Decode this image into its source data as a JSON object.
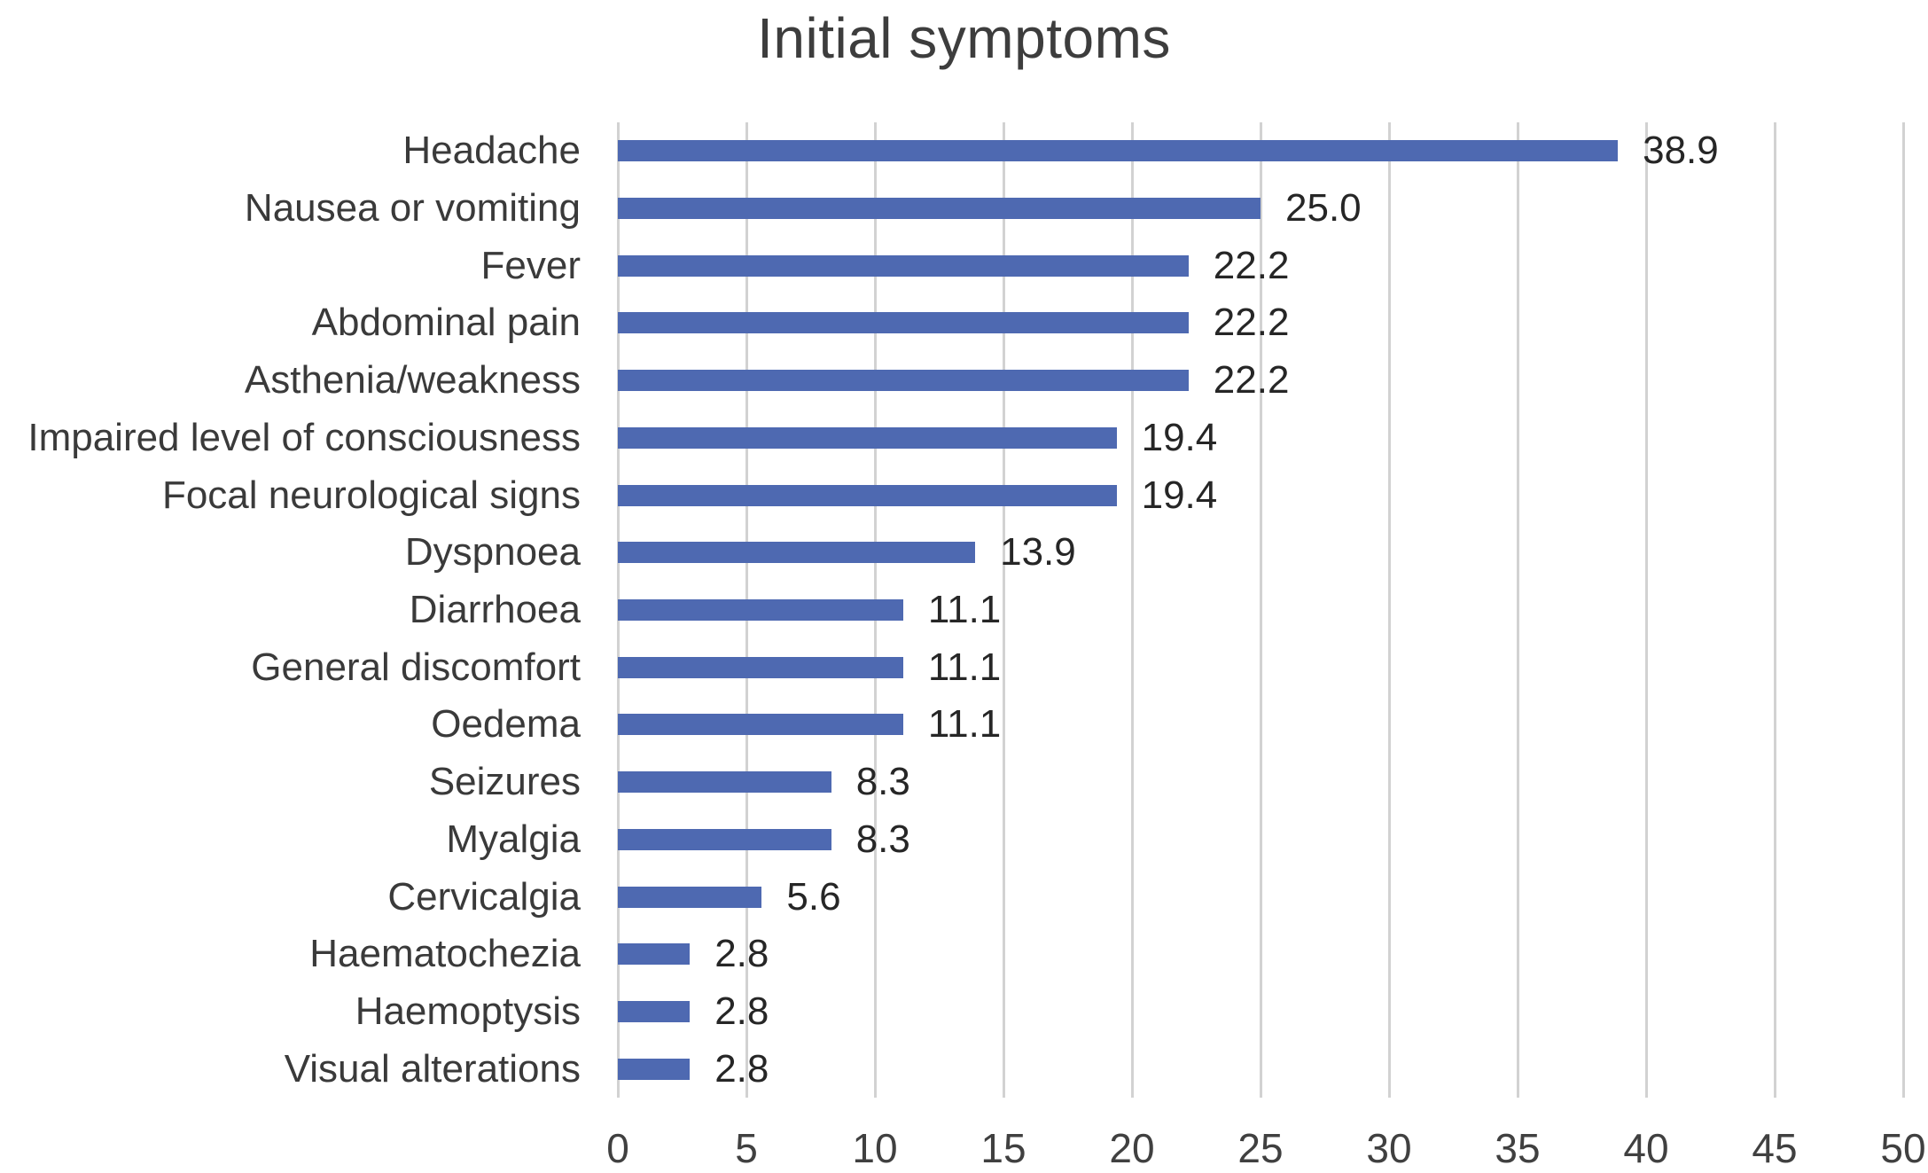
{
  "chart_data": {
    "type": "bar",
    "orientation": "horizontal",
    "title": "Initial symptoms",
    "categories": [
      "Headache",
      "Nausea or vomiting",
      "Fever",
      "Abdominal pain",
      "Asthenia/weakness",
      "Impaired level of consciousness",
      "Focal neurological signs",
      "Dyspnoea",
      "Diarrhoea",
      "General discomfort",
      "Oedema",
      "Seizures",
      "Myalgia",
      "Cervicalgia",
      "Haematochezia",
      "Haemoptysis",
      "Visual alterations"
    ],
    "values": [
      38.9,
      25.0,
      22.2,
      22.2,
      22.2,
      19.4,
      19.4,
      13.9,
      11.1,
      11.1,
      11.1,
      8.3,
      8.3,
      5.6,
      2.8,
      2.8,
      2.8
    ],
    "value_labels": [
      "38.9",
      "25.0",
      "22.2",
      "22.2",
      "22.2",
      "19.4",
      "19.4",
      "13.9",
      "11.1",
      "11.1",
      "11.1",
      "8.3",
      "8.3",
      "5.6",
      "2.8",
      "2.8",
      "2.8"
    ],
    "xlabel": "",
    "ylabel": "",
    "xlim": [
      0,
      50
    ],
    "x_ticks": [
      0,
      5,
      10,
      15,
      20,
      25,
      30,
      35,
      40,
      45,
      50
    ],
    "x_tick_labels": [
      "0",
      "5",
      "10",
      "15",
      "20",
      "25",
      "30",
      "35",
      "40",
      "45",
      "50"
    ],
    "grid": "vertical-only",
    "legend": "none",
    "colors": {
      "bar": "#4e69b1",
      "gridline": "#d2d2d2",
      "title_text": "#3d3d3d",
      "category_text": "#3a3a3a",
      "value_text": "#262626",
      "tick_text": "#404040",
      "background": "#ffffff"
    }
  }
}
